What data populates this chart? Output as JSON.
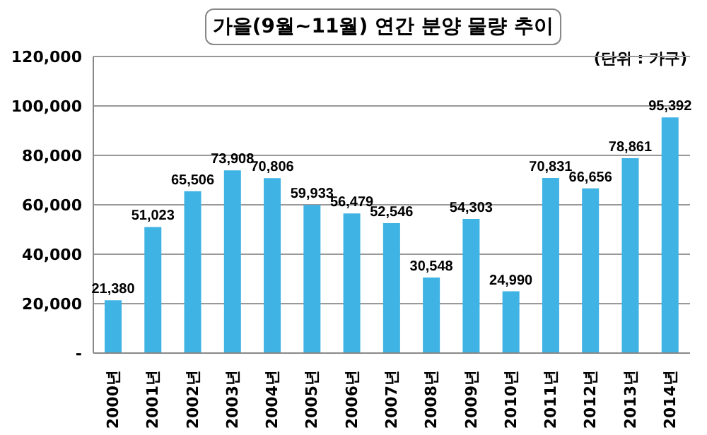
{
  "chart_data": {
    "type": "bar",
    "title": "가을(9월~11월) 연간 분양 물량 추이",
    "annotations": [
      "(단위 : 가구)"
    ],
    "categories": [
      "2000년",
      "2001년",
      "2002년",
      "2003년",
      "2004년",
      "2005년",
      "2006년",
      "2007년",
      "2008년",
      "2009년",
      "2010년",
      "2011년",
      "2012년",
      "2013년",
      "2014년"
    ],
    "values": [
      21380,
      51023,
      65506,
      73908,
      70806,
      59933,
      56479,
      52546,
      30548,
      54303,
      24990,
      70831,
      66656,
      78861,
      95392
    ],
    "value_labels": [
      "21,380",
      "51,023",
      "65,506",
      "73,908",
      "70,806",
      "59,933",
      "56,479",
      "52,546",
      "30,548",
      "54,303",
      "24,990",
      "70,831",
      "66,656",
      "78,861",
      "95,392"
    ],
    "color": "#3fb3e3",
    "grid": "y",
    "legend": false,
    "ylim": [
      0,
      120000
    ],
    "yticks": [
      {
        "value": 0,
        "label": "-"
      },
      {
        "value": 20000,
        "label": "20,000"
      },
      {
        "value": 40000,
        "label": "40,000"
      },
      {
        "value": 60000,
        "label": "60,000"
      },
      {
        "value": 80000,
        "label": "80,000"
      },
      {
        "value": 100000,
        "label": "100,000"
      },
      {
        "value": 120000,
        "label": "120,000"
      }
    ]
  }
}
